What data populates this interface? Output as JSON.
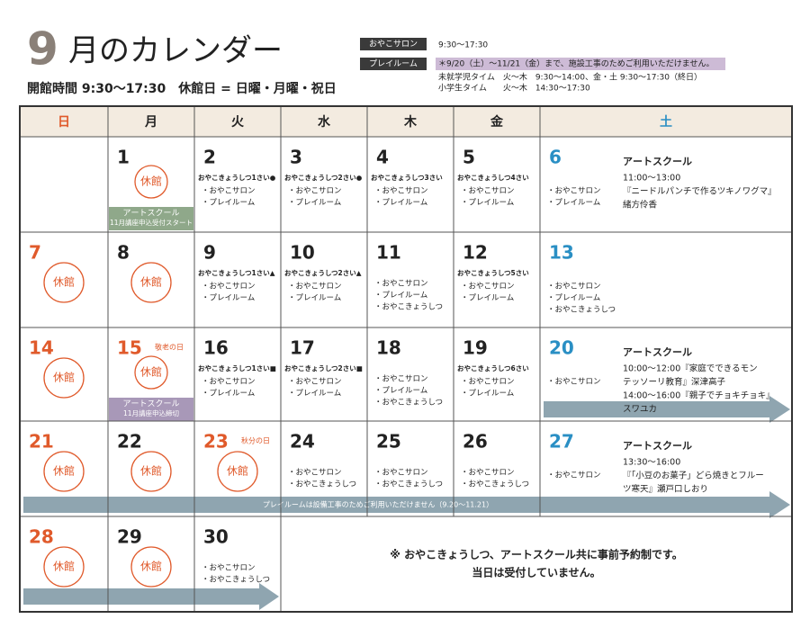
{
  "header": {
    "title_number": "9",
    "title_text": "月のカレンダー",
    "hours": "開館時間 9:30〜17:30　休館日 = 日曜・月曜・祝日"
  },
  "legend": {
    "salon_label": "おやこサロン",
    "salon_time": "9:30〜17:30",
    "playroom_label": "プレイルーム",
    "playroom_note": "＊9/20（土）〜11/21（金）まで、施設工事のためご利用いただけません。",
    "preschool": "未就学児タイム　火〜木　9:30〜14:00、金・土 9:30〜17:30（終日）",
    "school": "小学生タイム　　火〜木　14:30〜17:30"
  },
  "weekdays": [
    "日",
    "月",
    "火",
    "水",
    "木",
    "金",
    "土"
  ],
  "weeks": [
    {
      "cells": [
        null,
        {
          "date": "1",
          "closed": "休館",
          "banner": [
            "アートスクール",
            "11月講座申込受付スタート"
          ]
        },
        {
          "date": "2",
          "title": "おやこきょうしつ1さい●",
          "items": [
            "・おやこサロン",
            "・プレイルーム"
          ]
        },
        {
          "date": "3",
          "title": "おやこきょうしつ2さい●",
          "items": [
            "・おやこサロン",
            "・プレイルーム"
          ]
        },
        {
          "date": "4",
          "title": "おやこきょうしつ3さい",
          "items": [
            "・おやこサロン",
            "・プレイルーム"
          ]
        },
        {
          "date": "5",
          "title": "おやこきょうしつ4さい",
          "items": [
            "・おやこサロン",
            "・プレイルーム"
          ]
        },
        {
          "date": "6",
          "items": [
            "・おやこサロン",
            "・プレイルーム"
          ],
          "event": {
            "title": "アートスクール",
            "lines": [
              "11:00〜13:00",
              "『ニードルパンチで作るツキノワグマ』",
              "緒方伶香"
            ]
          }
        }
      ]
    },
    {
      "cells": [
        {
          "date": "7",
          "closed": "休館"
        },
        {
          "date": "8",
          "closed": "休館"
        },
        {
          "date": "9",
          "title": "おやこきょうしつ1さい▲",
          "items": [
            "・おやこサロン",
            "・プレイルーム"
          ]
        },
        {
          "date": "10",
          "title": "おやこきょうしつ2さい▲",
          "items": [
            "・おやこサロン",
            "・プレイルーム"
          ]
        },
        {
          "date": "11",
          "items": [
            "・おやこサロン",
            "・プレイルーム",
            "・おやこきょうしつ"
          ]
        },
        {
          "date": "12",
          "title": "おやこきょうしつ5さい",
          "items": [
            "・おやこサロン",
            "・プレイルーム"
          ]
        },
        {
          "date": "13",
          "items": [
            "・おやこサロン",
            "・プレイルーム",
            "・おやこきょうしつ"
          ]
        }
      ]
    },
    {
      "cells": [
        {
          "date": "14",
          "closed": "休館"
        },
        {
          "date": "15",
          "holiday": "敬老の日",
          "closed": "休館",
          "banner": [
            "アートスクール",
            "11月講座申込締切"
          ]
        },
        {
          "date": "16",
          "title": "おやこきょうしつ1さい■",
          "items": [
            "・おやこサロン",
            "・プレイルーム"
          ]
        },
        {
          "date": "17",
          "title": "おやこきょうしつ2さい■",
          "items": [
            "・おやこサロン",
            "・プレイルーム"
          ]
        },
        {
          "date": "18",
          "items": [
            "・おやこサロン",
            "・プレイルーム",
            "・おやこきょうしつ"
          ]
        },
        {
          "date": "19",
          "title": "おやこきょうしつ6さい",
          "items": [
            "・おやこサロン",
            "・プレイルーム"
          ]
        },
        {
          "date": "20",
          "items": [
            "・おやこサロン"
          ],
          "event": {
            "title": "アートスクール",
            "lines": [
              "10:00〜12:00『家庭でできるモン",
              "テッソーリ教育』深津高子",
              "14:00〜16:00『親子でチョキチョキ』",
              "スワユカ"
            ]
          }
        }
      ]
    },
    {
      "cells": [
        {
          "date": "21",
          "closed": "休館"
        },
        {
          "date": "22",
          "closed": "休館"
        },
        {
          "date": "23",
          "holiday": "秋分の日",
          "closed": "休館"
        },
        {
          "date": "24",
          "items": [
            "・おやこサロン",
            "・おやこきょうしつ"
          ]
        },
        {
          "date": "25",
          "items": [
            "・おやこサロン",
            "・おやこきょうしつ"
          ]
        },
        {
          "date": "26",
          "items": [
            "・おやこサロン",
            "・おやこきょうしつ"
          ]
        },
        {
          "date": "27",
          "items": [
            "・おやこサロン"
          ],
          "event": {
            "title": "アートスクール",
            "lines": [
              "13:30〜16:00",
              "『「小豆のお菓子」どら焼きとフルー",
              "ツ寒天』瀬戸口しおり"
            ]
          }
        }
      ],
      "banner": "プレイルームは設備工事のためご利用いただけません（9.20〜11.21）"
    },
    {
      "cells": [
        {
          "date": "28",
          "closed": "休館"
        },
        {
          "date": "29",
          "closed": "休館"
        },
        {
          "date": "30",
          "items": [
            "・おやこサロン",
            "・おやこきょうしつ"
          ]
        }
      ],
      "notice": [
        "※ おやこきょうしつ、アートスクール共に事前予約制です。",
        "当日は受付していません。"
      ]
    }
  ]
}
